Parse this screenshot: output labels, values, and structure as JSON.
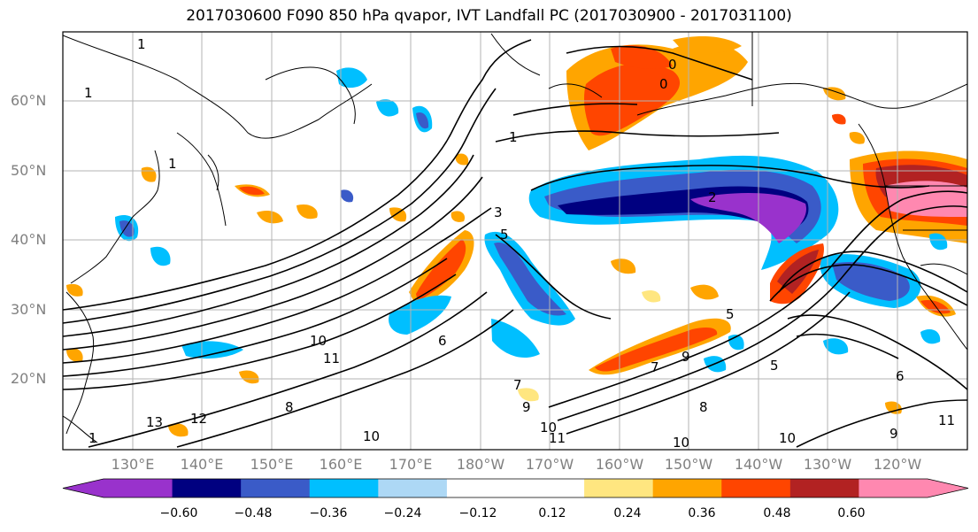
{
  "title": "2017030600 F090 850 hPa qvapor, IVT Landfall PC (2017030900 - 2017031100)",
  "lat_labels": [
    "60°N",
    "50°N",
    "40°N",
    "30°N",
    "20°N"
  ],
  "lon_labels": [
    "130°E",
    "140°E",
    "150°E",
    "160°E",
    "170°E",
    "180°W",
    "170°W",
    "160°W",
    "150°W",
    "140°W",
    "130°W",
    "120°W"
  ],
  "contour_labels": [
    "1",
    "1",
    "1",
    "0",
    "0",
    "1",
    "2",
    "3",
    "5",
    "5",
    "6",
    "7",
    "8",
    "9",
    "10",
    "10",
    "10",
    "11",
    "11",
    "12",
    "13",
    "1",
    "10",
    "5",
    "6",
    "7",
    "8",
    "9",
    "9",
    "10",
    "11"
  ],
  "colorbar": {
    "colors": [
      "#9932cc",
      "#000080",
      "#3a5bc8",
      "#00bfff",
      "#add8f5",
      "#ffffff",
      "#ffffff",
      "#ffe680",
      "#ffa500",
      "#ff4500",
      "#b22222",
      "#ff88b0"
    ],
    "ticks": [
      "−0.60",
      "−0.48",
      "−0.36",
      "−0.24",
      "−0.12",
      "0.12",
      "0.24",
      "0.36",
      "0.48",
      "0.60"
    ]
  }
}
